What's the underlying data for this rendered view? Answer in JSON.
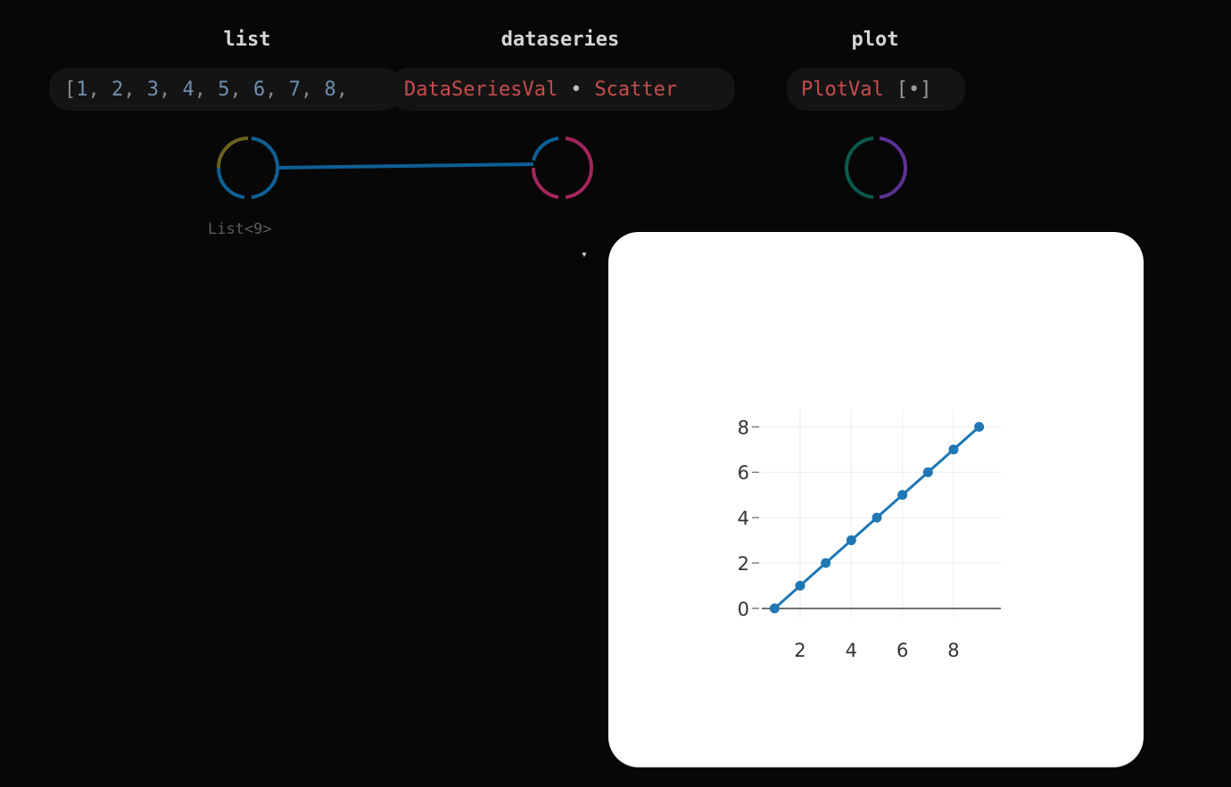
{
  "nodes": {
    "list": {
      "title": "list",
      "items": [
        "1",
        "2",
        "3",
        "4",
        "5",
        "6",
        "7",
        "8"
      ],
      "open_bracket": "[",
      "footer": "List<9>"
    },
    "dataseries": {
      "title": "dataseries",
      "type_label": "DataSeriesVal",
      "separator": "•",
      "kind_label": "Scatter"
    },
    "plot": {
      "title": "plot",
      "type_label": "PlotVal",
      "suffix": "[•]"
    }
  },
  "caret": "▾",
  "colors": {
    "background": "#070707",
    "wire": "#0f5f95",
    "series": "#1f77b4",
    "value_red": "#c94c4c"
  },
  "chart_data": {
    "type": "scatter",
    "mode": "lines+markers",
    "x": [
      1,
      2,
      3,
      4,
      5,
      6,
      7,
      8,
      9
    ],
    "y": [
      0,
      1,
      2,
      3,
      4,
      5,
      6,
      7,
      8
    ],
    "xlim": [
      0.5,
      9.85
    ],
    "ylim": [
      -0.4,
      8.8
    ],
    "xticks": [
      2,
      4,
      6,
      8
    ],
    "yticks": [
      0,
      2,
      4,
      6,
      8
    ],
    "grid": true,
    "title": "",
    "xlabel": "",
    "ylabel": ""
  }
}
